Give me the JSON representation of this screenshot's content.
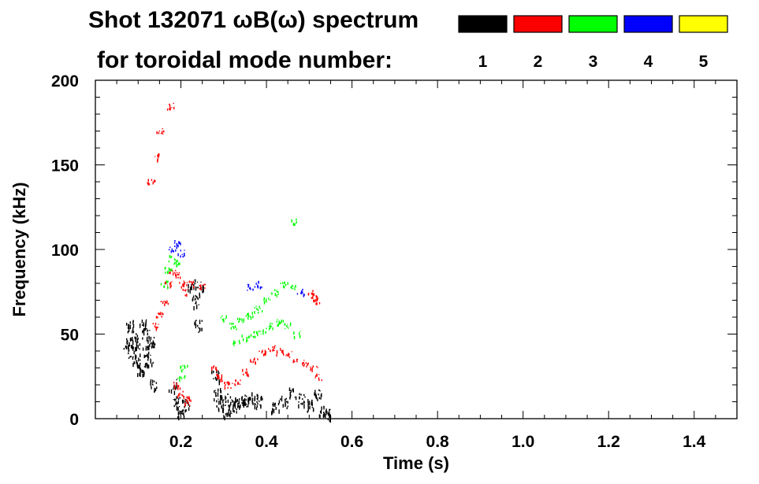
{
  "chart_data": {
    "type": "scatter",
    "title_line1": "Shot 132071 ωB(ω) spectrum",
    "title_line2": "for toroidal mode number:",
    "xlabel": "Time (s)",
    "ylabel": "Frequency (kHz)",
    "xlim": [
      0.0,
      1.5
    ],
    "ylim": [
      0,
      200
    ],
    "x_ticks": [
      0.2,
      0.4,
      0.6,
      0.8,
      1.0,
      1.2,
      1.4
    ],
    "x_tick_labels": [
      "0.2",
      "0.4",
      "0.6",
      "0.8",
      "1.0",
      "1.2",
      "1.4"
    ],
    "y_ticks": [
      0,
      50,
      100,
      150,
      200
    ],
    "y_tick_labels": [
      "0",
      "50",
      "100",
      "150",
      "200"
    ],
    "legend": [
      {
        "label": "1",
        "color": "#000000"
      },
      {
        "label": "2",
        "color": "#ff0000"
      },
      {
        "label": "3",
        "color": "#00ff00"
      },
      {
        "label": "4",
        "color": "#0000ff"
      },
      {
        "label": "5",
        "color": "#ffff00"
      }
    ],
    "series": [
      {
        "name": "1",
        "color": "#000000",
        "points": [
          [
            0.075,
            45
          ],
          [
            0.08,
            55
          ],
          [
            0.085,
            40
          ],
          [
            0.09,
            50
          ],
          [
            0.095,
            35
          ],
          [
            0.1,
            45
          ],
          [
            0.105,
            30
          ],
          [
            0.11,
            55
          ],
          [
            0.115,
            40
          ],
          [
            0.12,
            50
          ],
          [
            0.125,
            35
          ],
          [
            0.13,
            45
          ],
          [
            0.135,
            20
          ],
          [
            0.18,
            20
          ],
          [
            0.19,
            10
          ],
          [
            0.2,
            5
          ],
          [
            0.21,
            8
          ],
          [
            0.225,
            80
          ],
          [
            0.235,
            70
          ],
          [
            0.24,
            55
          ],
          [
            0.245,
            78
          ],
          [
            0.28,
            25
          ],
          [
            0.285,
            15
          ],
          [
            0.29,
            8
          ],
          [
            0.3,
            12
          ],
          [
            0.31,
            5
          ],
          [
            0.32,
            10
          ],
          [
            0.33,
            8
          ],
          [
            0.34,
            12
          ],
          [
            0.35,
            10
          ],
          [
            0.37,
            12
          ],
          [
            0.38,
            10
          ],
          [
            0.42,
            8
          ],
          [
            0.44,
            10
          ],
          [
            0.46,
            15
          ],
          [
            0.48,
            12
          ],
          [
            0.5,
            8
          ],
          [
            0.52,
            15
          ],
          [
            0.53,
            5
          ],
          [
            0.54,
            3
          ]
        ]
      },
      {
        "name": "2",
        "color": "#ff0000",
        "points": [
          [
            0.13,
            140
          ],
          [
            0.14,
            155
          ],
          [
            0.15,
            170
          ],
          [
            0.175,
            185
          ],
          [
            0.14,
            55
          ],
          [
            0.15,
            62
          ],
          [
            0.16,
            70
          ],
          [
            0.17,
            80
          ],
          [
            0.18,
            88
          ],
          [
            0.19,
            85
          ],
          [
            0.2,
            80
          ],
          [
            0.21,
            75
          ],
          [
            0.22,
            80
          ],
          [
            0.25,
            78
          ],
          [
            0.19,
            20
          ],
          [
            0.2,
            15
          ],
          [
            0.21,
            12
          ],
          [
            0.215,
            10
          ],
          [
            0.28,
            30
          ],
          [
            0.29,
            25
          ],
          [
            0.3,
            22
          ],
          [
            0.31,
            20
          ],
          [
            0.33,
            22
          ],
          [
            0.35,
            28
          ],
          [
            0.37,
            35
          ],
          [
            0.39,
            40
          ],
          [
            0.41,
            42
          ],
          [
            0.43,
            40
          ],
          [
            0.45,
            38
          ],
          [
            0.47,
            35
          ],
          [
            0.49,
            33
          ],
          [
            0.51,
            30
          ],
          [
            0.52,
            25
          ],
          [
            0.505,
            75
          ],
          [
            0.51,
            72
          ],
          [
            0.515,
            70
          ]
        ]
      },
      {
        "name": "3",
        "color": "#00ff00",
        "points": [
          [
            0.16,
            80
          ],
          [
            0.17,
            88
          ],
          [
            0.18,
            95
          ],
          [
            0.19,
            92
          ],
          [
            0.2,
            25
          ],
          [
            0.205,
            30
          ],
          [
            0.3,
            60
          ],
          [
            0.32,
            55
          ],
          [
            0.34,
            58
          ],
          [
            0.36,
            62
          ],
          [
            0.38,
            65
          ],
          [
            0.4,
            70
          ],
          [
            0.42,
            75
          ],
          [
            0.44,
            80
          ],
          [
            0.46,
            78
          ],
          [
            0.33,
            45
          ],
          [
            0.35,
            48
          ],
          [
            0.37,
            50
          ],
          [
            0.39,
            52
          ],
          [
            0.41,
            55
          ],
          [
            0.43,
            57
          ],
          [
            0.45,
            55
          ],
          [
            0.47,
            50
          ],
          [
            0.46,
            117
          ]
        ]
      },
      {
        "name": "4",
        "color": "#0000ff",
        "points": [
          [
            0.18,
            100
          ],
          [
            0.19,
            104
          ],
          [
            0.2,
            98
          ],
          [
            0.36,
            78
          ],
          [
            0.38,
            80
          ],
          [
            0.48,
            75
          ]
        ]
      },
      {
        "name": "5",
        "color": "#ffff00",
        "points": []
      }
    ]
  }
}
